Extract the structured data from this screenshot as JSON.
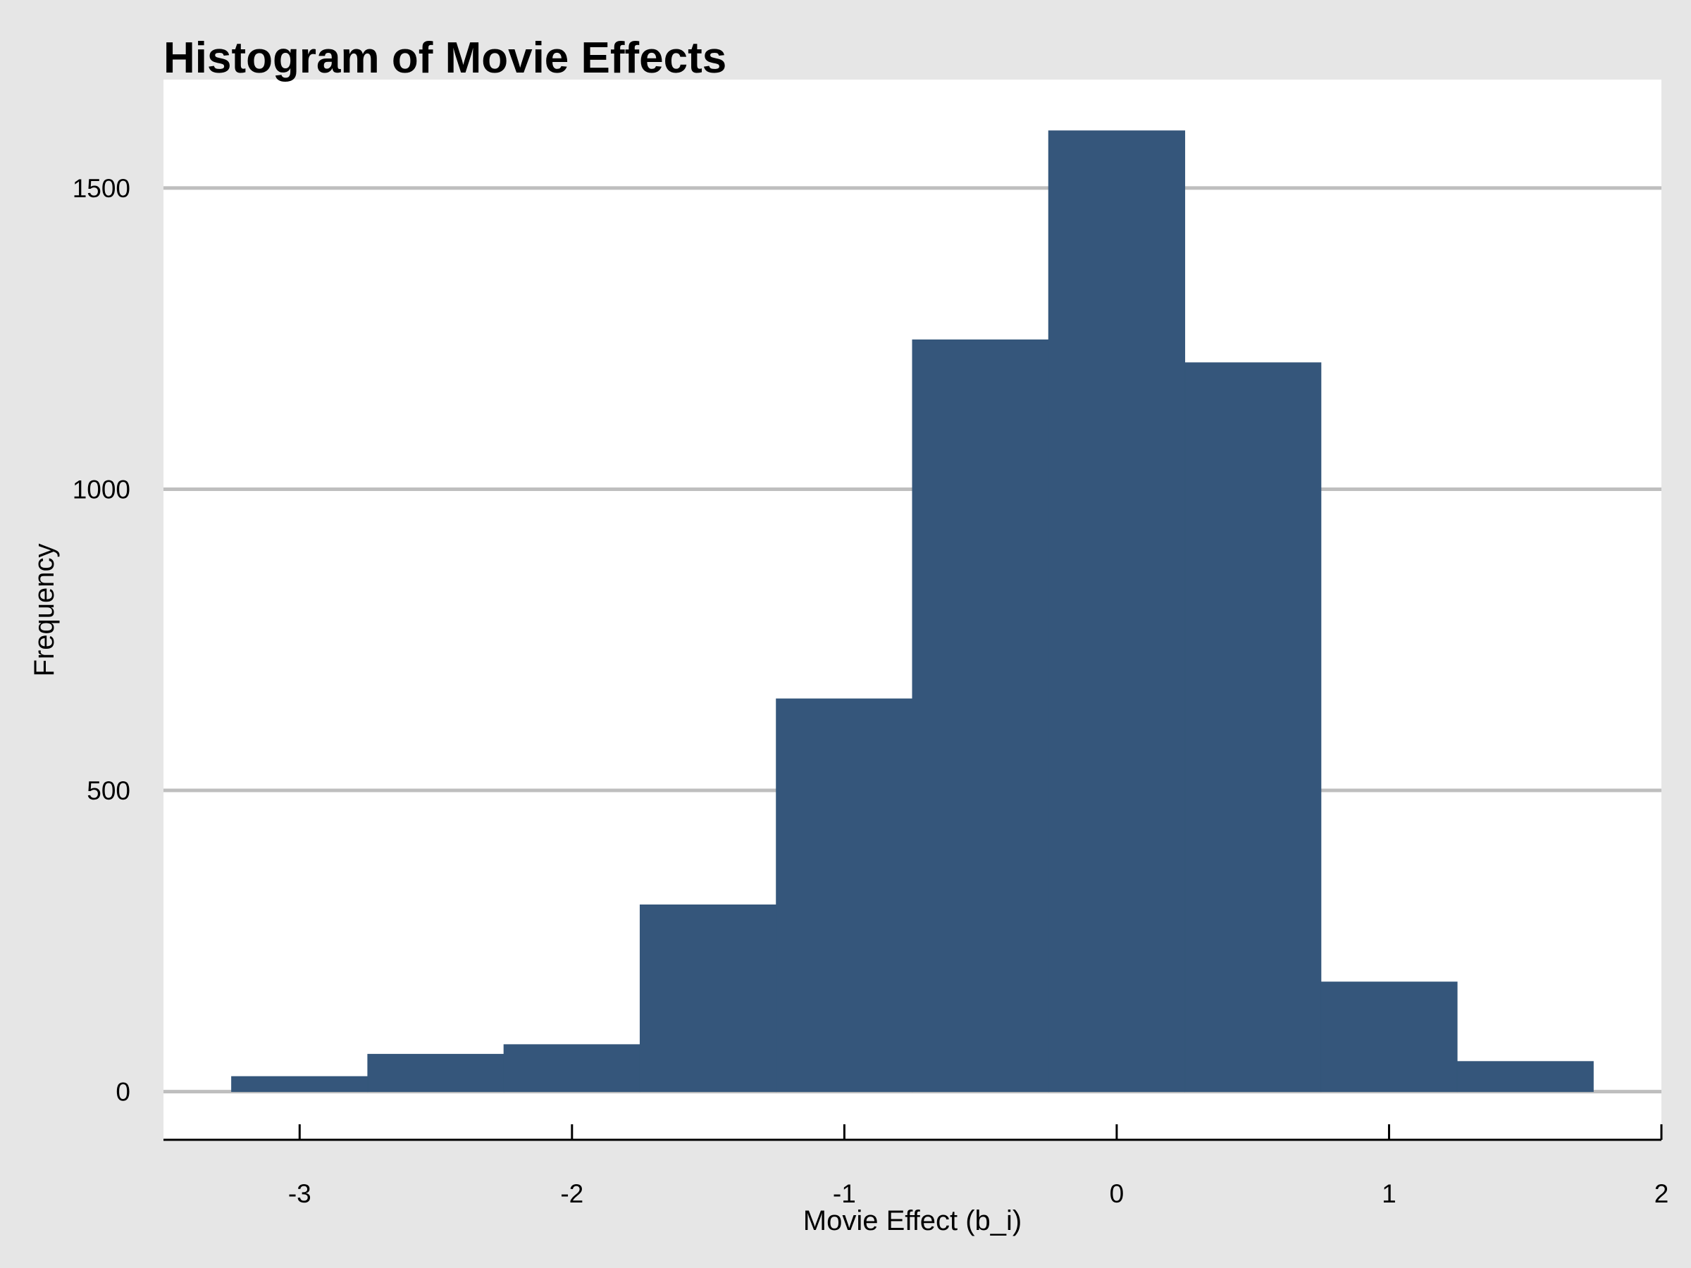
{
  "chart_data": {
    "type": "bar",
    "title": "Histogram of Movie Effects",
    "xlabel": "Movie Effect (b_i)",
    "ylabel": "Frequency",
    "xlim": [
      -3.5,
      2
    ],
    "ylim": [
      -80,
      1680
    ],
    "x_ticks": [
      -3,
      -2,
      -1,
      0,
      1,
      2
    ],
    "x_tick_labels": [
      "-3",
      "-2",
      "-1",
      "0",
      "1",
      "2"
    ],
    "y_ticks": [
      0,
      500,
      1000,
      1500
    ],
    "y_tick_labels": [
      "0",
      "500",
      "1000",
      "1500"
    ],
    "bin_width": 0.5,
    "bins": [
      {
        "x_start": -3.25,
        "x_end": -2.75,
        "count": 25
      },
      {
        "x_start": -2.75,
        "x_end": -2.25,
        "count": 62
      },
      {
        "x_start": -2.25,
        "x_end": -1.75,
        "count": 78
      },
      {
        "x_start": -1.75,
        "x_end": -1.25,
        "count": 310
      },
      {
        "x_start": -1.25,
        "x_end": -0.75,
        "count": 652
      },
      {
        "x_start": -0.75,
        "x_end": -0.25,
        "count": 1248
      },
      {
        "x_start": -0.25,
        "x_end": 0.25,
        "count": 1595
      },
      {
        "x_start": 0.25,
        "x_end": 0.75,
        "count": 1210
      },
      {
        "x_start": 0.75,
        "x_end": 1.25,
        "count": 182
      },
      {
        "x_start": 1.25,
        "x_end": 1.75,
        "count": 50
      }
    ],
    "grid": "horizontal",
    "colors": {
      "bar": "#35567b",
      "grid": "#bebebe",
      "panel": "#ffffff",
      "background": "#e6e6e6",
      "axis": "#000000"
    }
  }
}
